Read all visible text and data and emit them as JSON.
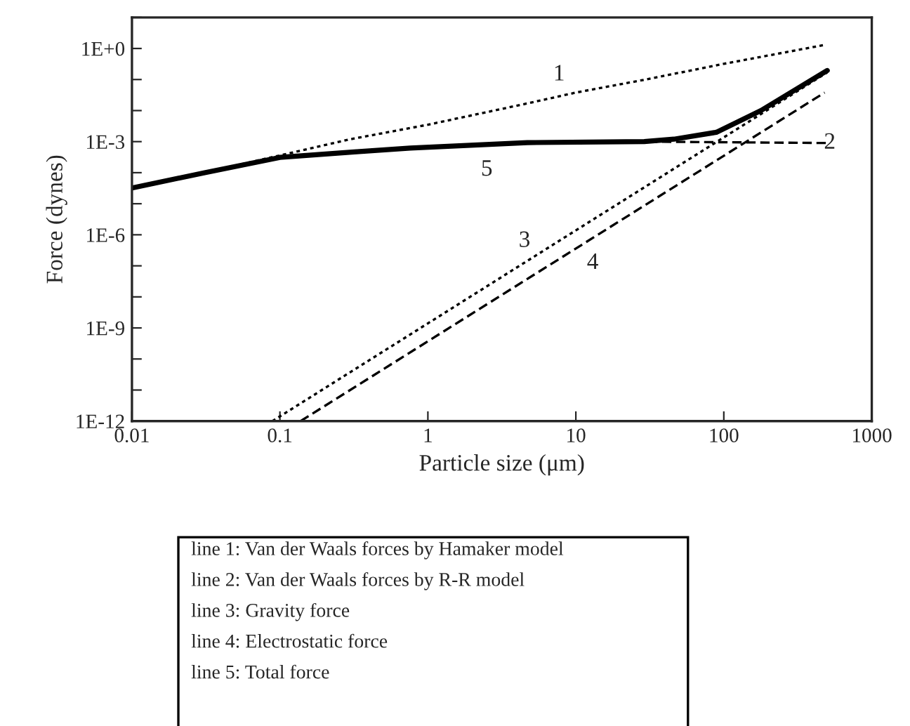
{
  "chart_data": {
    "type": "line",
    "xlabel": "Particle size (μm)",
    "ylabel": "Force (dynes)",
    "log": "xy",
    "grid": false,
    "legend": false,
    "marker": "none",
    "xlim": [
      0.01,
      1000
    ],
    "xticks": [
      0.01,
      0.1,
      1,
      10,
      100,
      1000
    ],
    "ylim": [
      1e-12,
      10
    ],
    "yticks": [
      {
        "value": 1e-12,
        "label": "1E-12"
      },
      {
        "value": 1e-11,
        "label": null
      },
      {
        "value": 1e-10,
        "label": null
      },
      {
        "value": 1e-09,
        "label": "1E-9"
      },
      {
        "value": 1e-08,
        "label": null
      },
      {
        "value": 1e-07,
        "label": null
      },
      {
        "value": 1e-06,
        "label": "1E-6"
      },
      {
        "value": 1e-05,
        "label": null
      },
      {
        "value": 0.0001,
        "label": null
      },
      {
        "value": 0.001,
        "label": "1E-3"
      },
      {
        "value": 0.01,
        "label": null
      },
      {
        "value": 0.1,
        "label": null
      },
      {
        "value": 1,
        "label": "1E+0"
      },
      {
        "value": 10,
        "label": null
      }
    ],
    "series": [
      {
        "color": "#000000",
        "line_style": "dotted",
        "x": [
          0.01,
          0.031,
          0.1,
          0.3,
          1,
          4.7,
          10,
          29,
          100,
          480
        ],
        "values": [
          3.2e-05,
          0.0001,
          0.00036,
          0.0012,
          0.0035,
          0.017,
          0.038,
          0.098,
          0.32,
          1.3
        ]
      },
      {
        "color": "#000000",
        "line_style": "dashed",
        "x": [
          0.01,
          0.031,
          0.1,
          0.33,
          0.76,
          4.7,
          29,
          520
        ],
        "values": [
          3.2e-05,
          0.0001,
          0.00031,
          0.00047,
          0.00062,
          0.00093,
          0.001,
          0.0009
        ]
      },
      {
        "color": "#000000",
        "line_style": "dotted",
        "x": [
          0.089,
          500
        ],
        "values": [
          1e-12,
          0.17
        ]
      },
      {
        "color": "#000000",
        "line_style": "dashed",
        "x": [
          0.138,
          480
        ],
        "values": [
          1e-12,
          0.038
        ]
      },
      {
        "color": "#000000",
        "line_style": "solid",
        "x": [
          0.01,
          0.031,
          0.1,
          0.33,
          0.76,
          4.7,
          29,
          46,
          89,
          178,
          500
        ],
        "values": [
          3.2e-05,
          0.0001,
          0.00031,
          0.00047,
          0.00062,
          0.00093,
          0.001,
          0.0012,
          0.002,
          0.01,
          0.195
        ]
      }
    ],
    "annotations": [
      {
        "text": "1",
        "x": 7.7,
        "y": 0.029
      },
      {
        "text": "2",
        "x": 520,
        "y": 0.0009
      },
      {
        "text": "3",
        "x": 4.5,
        "y": 1.26e-07
      },
      {
        "text": "4",
        "x": 13,
        "y": 7.9e-07
      },
      {
        "text": "5",
        "x": 2.5,
        "y": 0.0008
      },
      "line 1: Van der Waals forces by Hamaker model",
      "line 2: Van der Waals forces by R-R model",
      "line 3: Gravity force",
      "line 4: Electrostatic force",
      "line 5: Total force"
    ]
  }
}
